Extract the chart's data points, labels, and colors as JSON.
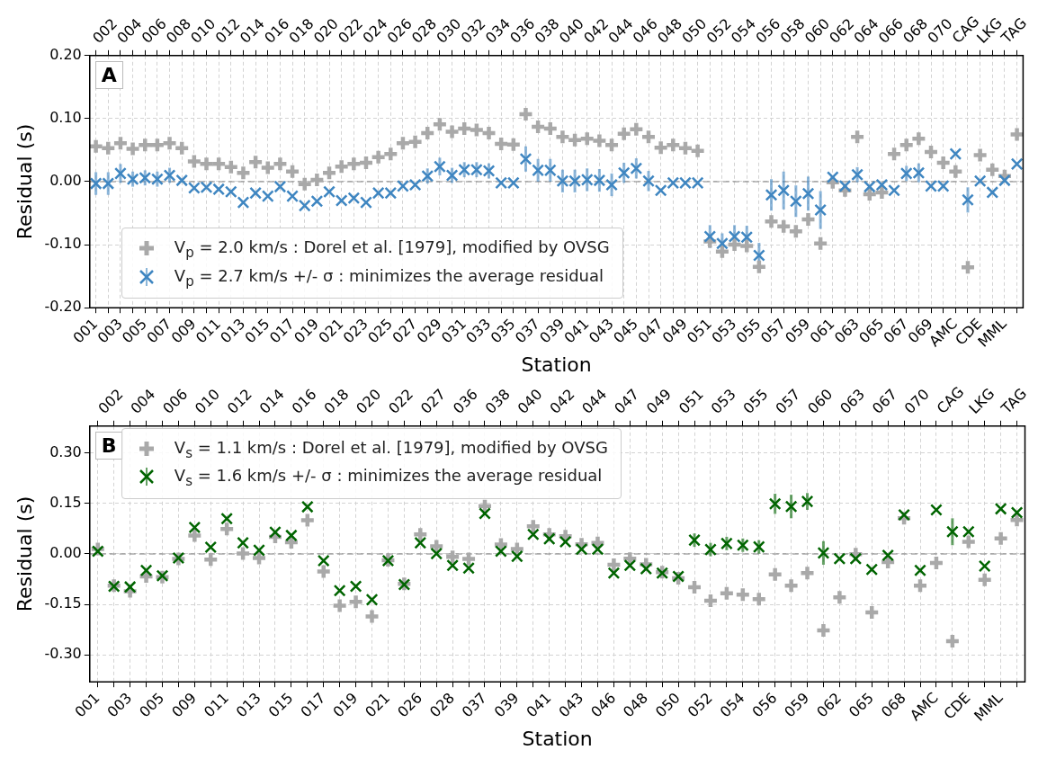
{
  "chart_data": [
    {
      "type": "scatter",
      "annotations": [
        "A"
      ],
      "xlabel": "Station",
      "ylabel": "Residual (s)",
      "grid": true,
      "legend": "bottom left",
      "categories": [
        "001",
        "002",
        "003",
        "004",
        "005",
        "006",
        "007",
        "008",
        "009",
        "010",
        "011",
        "012",
        "013",
        "014",
        "015",
        "016",
        "017",
        "018",
        "019",
        "020",
        "021",
        "022",
        "023",
        "024",
        "025",
        "026",
        "027",
        "028",
        "029",
        "030",
        "031",
        "032",
        "033",
        "034",
        "035",
        "036",
        "037",
        "038",
        "039",
        "040",
        "041",
        "042",
        "043",
        "044",
        "045",
        "046",
        "047",
        "048",
        "049",
        "050",
        "051",
        "052",
        "053",
        "054",
        "055",
        "056",
        "057",
        "058",
        "059",
        "060",
        "061",
        "062",
        "063",
        "064",
        "065",
        "066",
        "067",
        "068",
        "069",
        "070",
        "AMC",
        "CAG",
        "CDE",
        "LKG",
        "MML",
        "TAG"
      ],
      "ylim": [
        -0.2,
        0.2
      ],
      "yticks": [
        {
          "value": -0.2,
          "label": "-0.20"
        },
        {
          "value": -0.1,
          "label": "-0.10"
        },
        {
          "value": 0,
          "label": "0.00"
        },
        {
          "value": 0.1,
          "label": "0.10"
        },
        {
          "value": 0.2,
          "label": "0.20"
        }
      ],
      "ref_lines": [
        {
          "axis": "y",
          "value": 0,
          "color": "#808080",
          "line_style": "dashed"
        }
      ],
      "series": [
        {
          "name": "V$_{p}$ = 2.0 km/s : Dorel et al. [1979], modified by OVSG",
          "color": "#a9a9a9",
          "marker": "cross",
          "values": [
            0.056,
            0.053,
            0.061,
            0.052,
            0.058,
            0.058,
            0.061,
            0.053,
            0.032,
            0.028,
            0.028,
            0.023,
            0.014,
            0.031,
            0.022,
            0.028,
            0.016,
            -0.004,
            0.003,
            0.014,
            0.024,
            0.028,
            0.03,
            0.039,
            0.044,
            0.061,
            0.063,
            0.077,
            0.091,
            0.079,
            0.084,
            0.082,
            0.077,
            0.06,
            0.059,
            0.107,
            0.087,
            0.084,
            0.071,
            0.066,
            0.068,
            0.065,
            0.058,
            0.076,
            0.083,
            0.071,
            0.054,
            0.058,
            0.053,
            0.049,
            -0.095,
            -0.111,
            -0.1,
            -0.102,
            -0.135,
            -0.063,
            -0.071,
            -0.079,
            -0.06,
            -0.098,
            -0.001,
            -0.014,
            0.071,
            -0.02,
            -0.017,
            0.044,
            0.058,
            0.068,
            0.047,
            0.03,
            0.016,
            -0.136,
            0.042,
            0.019,
            0.009,
            0.075
          ]
        },
        {
          "name": "V$_{p}$ = 2.7 km/s +/- σ : minimizes the average residual",
          "color": "#3f86c1",
          "marker": "x",
          "values": [
            -0.003,
            -0.003,
            0.013,
            0.004,
            0.006,
            0.004,
            0.01,
            0.002,
            -0.01,
            -0.009,
            -0.012,
            -0.016,
            -0.033,
            -0.018,
            -0.023,
            -0.008,
            -0.023,
            -0.038,
            -0.031,
            -0.016,
            -0.03,
            -0.026,
            -0.033,
            -0.018,
            -0.018,
            -0.007,
            -0.005,
            0.009,
            0.024,
            0.01,
            0.019,
            0.019,
            0.017,
            -0.002,
            -0.002,
            0.036,
            0.018,
            0.018,
            0.001,
            0.001,
            0.003,
            0.002,
            -0.005,
            0.014,
            0.021,
            0.001,
            -0.014,
            -0.002,
            -0.002,
            -0.002,
            -0.087,
            -0.098,
            -0.087,
            -0.088,
            -0.117,
            -0.021,
            -0.014,
            -0.031,
            -0.019,
            -0.045,
            0.007,
            -0.007,
            0.011,
            -0.008,
            -0.005,
            -0.014,
            0.013,
            0.014,
            -0.007,
            -0.007,
            0.044,
            -0.029,
            0.001,
            -0.017,
            0.002,
            0.028
          ],
          "errors": [
            0.018,
            0.018,
            0.015,
            0.012,
            0.012,
            0.012,
            0.012,
            null,
            null,
            null,
            null,
            null,
            null,
            null,
            null,
            null,
            null,
            null,
            null,
            null,
            null,
            null,
            null,
            null,
            null,
            null,
            null,
            0.012,
            0.014,
            0.012,
            0.012,
            0.012,
            0.012,
            null,
            null,
            0.02,
            0.018,
            0.018,
            0.018,
            0.018,
            0.018,
            0.018,
            0.018,
            0.016,
            0.016,
            0.016,
            null,
            null,
            null,
            null,
            0.018,
            0.016,
            0.018,
            0.018,
            0.02,
            0.025,
            0.03,
            0.025,
            0.027,
            0.03,
            null,
            null,
            0.012,
            null,
            null,
            null,
            0.012,
            0.015,
            null,
            null,
            null,
            0.02,
            null,
            null,
            null,
            null
          ]
        }
      ]
    },
    {
      "type": "scatter",
      "annotations": [
        "B"
      ],
      "xlabel": "Station",
      "ylabel": "Residual (s)",
      "grid": true,
      "legend": "top left",
      "categories": [
        "001",
        "002",
        "003",
        "004",
        "005",
        "006",
        "009",
        "010",
        "011",
        "012",
        "013",
        "014",
        "015",
        "016",
        "017",
        "018",
        "019",
        "020",
        "021",
        "022",
        "026",
        "027",
        "028",
        "036",
        "037",
        "038",
        "039",
        "040",
        "041",
        "042",
        "043",
        "044",
        "046",
        "047",
        "048",
        "049",
        "050",
        "051",
        "052",
        "053",
        "054",
        "055",
        "056",
        "057",
        "059",
        "060",
        "062",
        "063",
        "065",
        "067",
        "068",
        "070",
        "AMC",
        "CAG",
        "CDE",
        "LKG",
        "MML",
        "TAG"
      ],
      "ylim": [
        -0.38,
        0.38
      ],
      "yticks": [
        {
          "value": -0.3,
          "label": "-0.30"
        },
        {
          "value": -0.15,
          "label": "-0.15"
        },
        {
          "value": 0,
          "label": "0.00"
        },
        {
          "value": 0.15,
          "label": "0.15"
        },
        {
          "value": 0.3,
          "label": "0.30"
        }
      ],
      "ref_lines": [
        {
          "axis": "y",
          "value": 0,
          "color": "#808080",
          "line_style": "dashed"
        }
      ],
      "series": [
        {
          "name": "V$_{s}$ = 1.1 km/s : Dorel et al. [1979], modified by OVSG",
          "color": "#a9a9a9",
          "marker": "cross",
          "values": [
            0.015,
            -0.094,
            -0.111,
            -0.067,
            -0.069,
            -0.015,
            0.055,
            -0.017,
            0.074,
            0.001,
            -0.012,
            0.051,
            0.035,
            0.1,
            -0.052,
            -0.154,
            -0.142,
            -0.186,
            -0.019,
            -0.089,
            0.058,
            0.023,
            -0.009,
            -0.015,
            0.142,
            0.028,
            0.015,
            0.082,
            0.058,
            0.053,
            0.029,
            0.033,
            -0.032,
            -0.014,
            -0.031,
            -0.054,
            -0.072,
            -0.099,
            -0.139,
            -0.117,
            -0.121,
            -0.134,
            -0.061,
            -0.094,
            -0.057,
            -0.227,
            -0.129,
            -0.001,
            -0.174,
            -0.024,
            0.106,
            -0.094,
            -0.027,
            -0.259,
            0.036,
            -0.077,
            0.046,
            0.101
          ]
        },
        {
          "name": "V$_{s}$ = 1.6 km/s +/- σ : minimizes the average residual",
          "color": "#006400",
          "marker": "x",
          "values": [
            0.008,
            -0.096,
            -0.098,
            -0.049,
            -0.065,
            -0.012,
            0.079,
            0.02,
            0.105,
            0.033,
            0.011,
            0.065,
            0.055,
            0.14,
            -0.02,
            -0.109,
            -0.096,
            -0.136,
            -0.02,
            -0.091,
            0.033,
            0.001,
            -0.034,
            -0.042,
            0.12,
            0.008,
            -0.007,
            0.058,
            0.045,
            0.036,
            0.014,
            0.014,
            -0.057,
            -0.034,
            -0.044,
            -0.057,
            -0.067,
            0.041,
            0.013,
            0.031,
            0.026,
            0.021,
            0.149,
            0.141,
            0.156,
            0.003,
            -0.014,
            -0.014,
            -0.046,
            -0.004,
            0.116,
            -0.049,
            0.131,
            0.066,
            0.066,
            -0.036,
            0.134,
            0.123
          ],
          "errors": [
            null,
            null,
            null,
            null,
            null,
            null,
            null,
            null,
            null,
            null,
            null,
            null,
            null,
            null,
            null,
            null,
            null,
            null,
            null,
            null,
            null,
            null,
            null,
            null,
            null,
            null,
            null,
            null,
            null,
            null,
            null,
            null,
            null,
            null,
            null,
            null,
            null,
            0.02,
            0.02,
            0.02,
            0.02,
            0.02,
            0.03,
            0.035,
            0.025,
            0.035,
            null,
            null,
            null,
            null,
            null,
            null,
            null,
            0.04,
            null,
            null,
            null,
            null
          ]
        }
      ]
    }
  ]
}
